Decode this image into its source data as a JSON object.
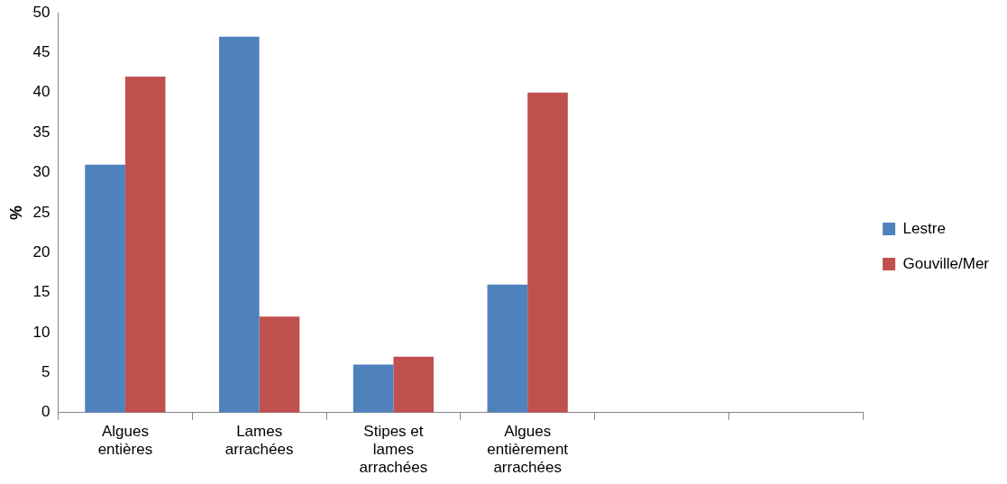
{
  "chart_data": {
    "type": "bar",
    "ylabel": "%",
    "categories": [
      "Algues entières",
      "Lames arrachées",
      "Stipes et lames arrachées",
      "Algues entièrement arrachées",
      null,
      null
    ],
    "series": [
      {
        "name": "Lestre",
        "color": "#4f81bd",
        "values": [
          31,
          47,
          6,
          16,
          null,
          null
        ]
      },
      {
        "name": "Gouville/Mer",
        "color": "#c0504d",
        "values": [
          42,
          12,
          7,
          40,
          null,
          null
        ]
      }
    ],
    "ylim": [
      0,
      50
    ],
    "yticks": [
      0,
      5,
      10,
      15,
      20,
      25,
      30,
      35,
      40,
      45,
      50
    ],
    "grid": false,
    "legend": "right"
  }
}
